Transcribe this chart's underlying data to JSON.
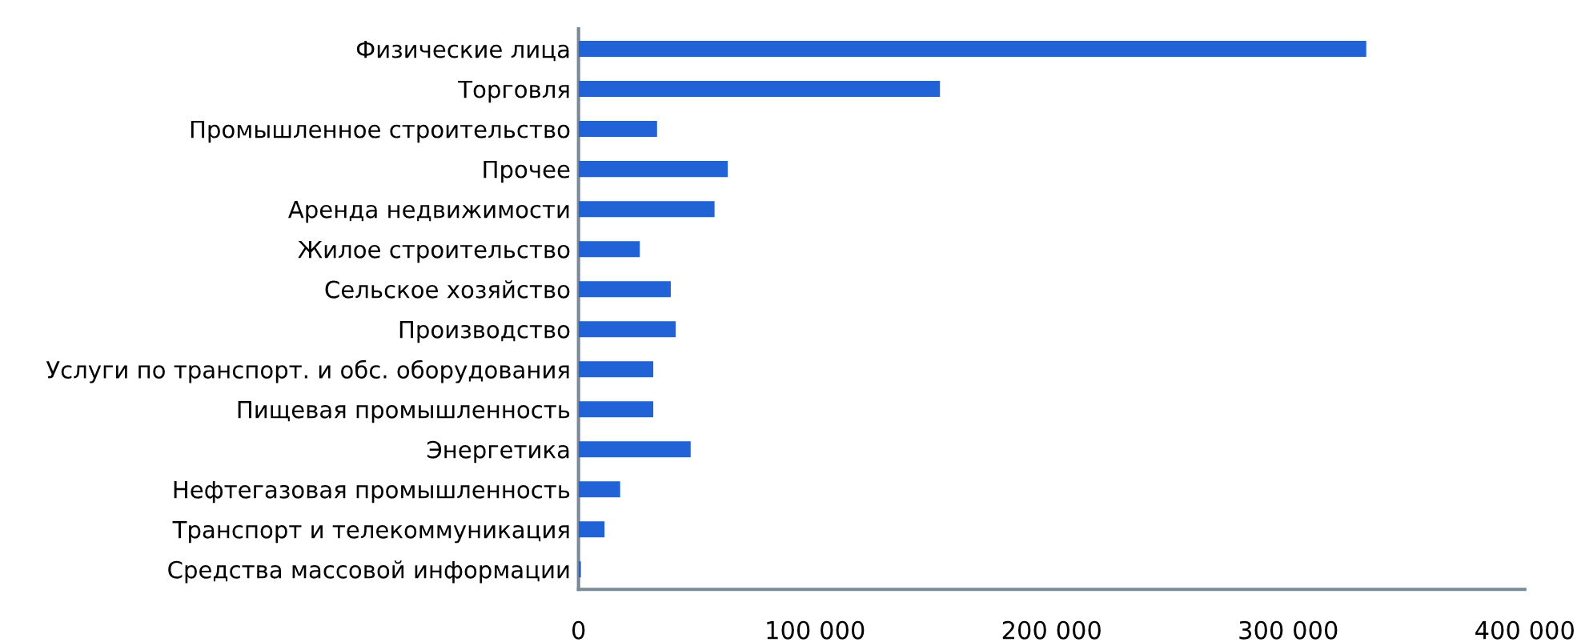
{
  "chart_data": {
    "type": "bar",
    "orientation": "horizontal",
    "categories": [
      "Физические лица",
      "Торговля",
      "Промышленное строительство",
      "Прочее",
      "Аренда недвижимости",
      "Жилое строительство",
      "Сельское хозяйство",
      "Производство",
      "Услуги по транспорт. и обс. оборудования",
      "Пищевая промышленность",
      "Энергетика",
      "Нефтегазовая промышленность",
      "Транспорт и телекоммуникация",
      "Средства массовой информации"
    ],
    "values": [
      333000,
      152800,
      33200,
      63100,
      57500,
      25900,
      39000,
      41100,
      31600,
      31600,
      47400,
      17600,
      11000,
      1000
    ],
    "color": "#2163d6",
    "xlim": [
      0,
      400000
    ],
    "xticks": [
      0,
      {
        "value": 100000,
        "label": "100 000"
      },
      {
        "value": 200000,
        "label": "200 000"
      },
      {
        "value": 300000,
        "label": "300 000"
      },
      {
        "value": 400000,
        "label": "400 000"
      }
    ],
    "grid": false,
    "legend": false
  }
}
